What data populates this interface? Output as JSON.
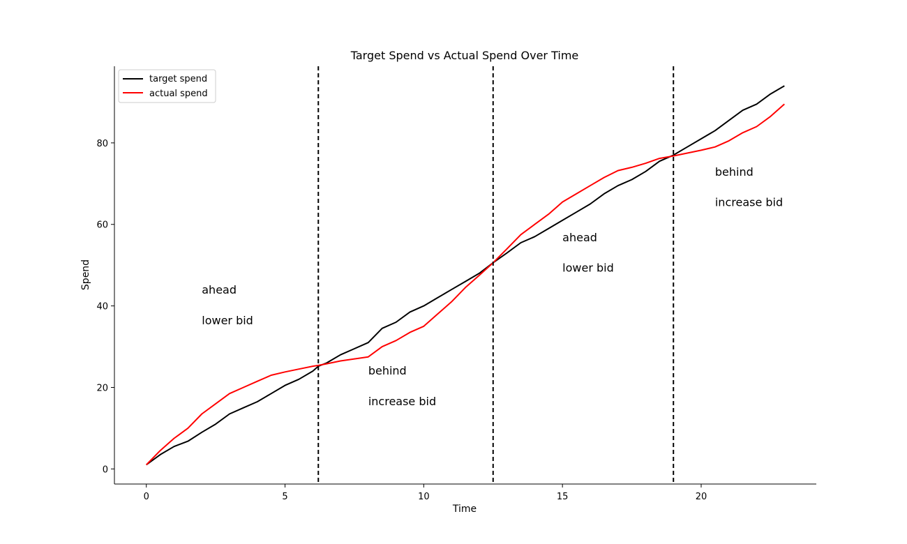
{
  "chart_data": {
    "type": "line",
    "title": "Target Spend vs Actual Spend Over Time",
    "xlabel": "Time",
    "ylabel": "Spend",
    "xlim": [
      -1.15,
      24.15
    ],
    "ylim": [
      -3.7,
      98.8
    ],
    "xticks": [
      0,
      5,
      10,
      15,
      20
    ],
    "yticks": [
      0,
      20,
      40,
      60,
      80
    ],
    "grid": false,
    "legend_position": "top-left",
    "x": [
      0,
      0.5,
      1,
      1.5,
      2,
      2.5,
      3,
      3.5,
      4,
      4.5,
      5,
      5.5,
      6,
      6.2,
      6.5,
      7,
      7.5,
      8,
      8.5,
      9,
      9.5,
      10,
      10.5,
      11,
      11.5,
      12,
      12.5,
      13,
      13.5,
      14,
      14.5,
      15,
      15.5,
      16,
      16.5,
      17,
      17.5,
      18,
      18.5,
      19,
      19.5,
      20,
      20.5,
      21,
      21.5,
      22,
      22.5,
      23
    ],
    "series": [
      {
        "name": "target spend",
        "color": "#000000",
        "values": [
          1.0,
          3.5,
          5.5,
          6.8,
          9.0,
          11.0,
          13.5,
          15.0,
          16.5,
          18.5,
          20.5,
          22.0,
          24.0,
          25.2,
          26.0,
          28.0,
          29.5,
          31.0,
          34.5,
          36.0,
          38.5,
          40.0,
          42.0,
          44.0,
          46.0,
          48.0,
          50.6,
          53.0,
          55.5,
          57.0,
          59.0,
          61.0,
          63.0,
          65.0,
          67.5,
          69.5,
          71.0,
          73.0,
          75.5,
          77.0,
          79.0,
          81.0,
          83.0,
          85.5,
          88.0,
          89.5,
          92.0,
          94.0
        ]
      },
      {
        "name": "actual spend",
        "color": "#ff0000",
        "values": [
          1.0,
          4.5,
          7.5,
          10.0,
          13.5,
          16.0,
          18.5,
          20.0,
          21.5,
          23.0,
          23.8,
          24.5,
          25.2,
          25.4,
          25.8,
          26.5,
          27.0,
          27.5,
          30.0,
          31.5,
          33.5,
          35.0,
          38.0,
          41.0,
          44.5,
          47.5,
          50.6,
          54.0,
          57.5,
          60.0,
          62.5,
          65.5,
          67.5,
          69.5,
          71.5,
          73.2,
          74.0,
          75.0,
          76.2,
          76.8,
          77.5,
          78.2,
          79.0,
          80.5,
          82.5,
          84.0,
          86.5,
          89.5
        ]
      }
    ],
    "vlines": [
      6.2,
      12.5,
      19.0
    ],
    "vline_style": "dashed",
    "annotations": [
      {
        "x": 2.0,
        "y": 44.0,
        "text": "ahead"
      },
      {
        "x": 2.0,
        "y": 36.5,
        "text": "lower bid"
      },
      {
        "x": 8.0,
        "y": 24.2,
        "text": "behind"
      },
      {
        "x": 8.0,
        "y": 16.7,
        "text": "increase bid"
      },
      {
        "x": 15.0,
        "y": 56.9,
        "text": "ahead"
      },
      {
        "x": 15.0,
        "y": 49.4,
        "text": "lower bid"
      },
      {
        "x": 20.5,
        "y": 73.0,
        "text": "behind"
      },
      {
        "x": 20.5,
        "y": 65.5,
        "text": "increase bid"
      }
    ]
  }
}
